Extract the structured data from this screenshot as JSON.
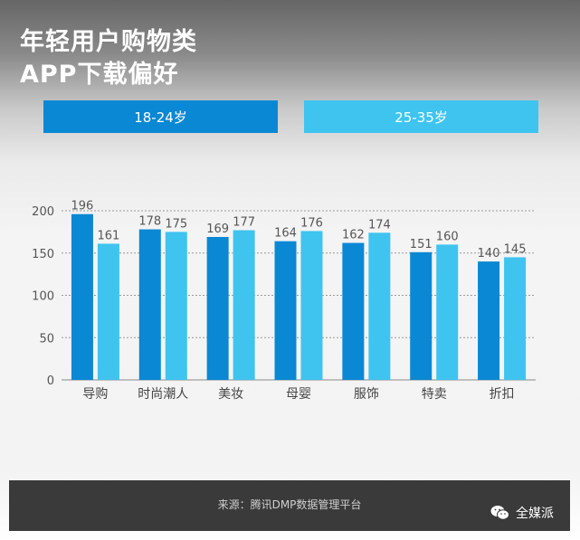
{
  "title": {
    "line1": "年轻用户购物类",
    "line2": "APP下载偏好"
  },
  "colors": {
    "series_a": "#0a88d4",
    "series_b": "#3fc4ef"
  },
  "chart_data": {
    "type": "bar",
    "categories": [
      "导购",
      "时尚潮人",
      "美妆",
      "母婴",
      "服饰",
      "特卖",
      "折扣"
    ],
    "series": [
      {
        "name": "18-24岁",
        "values": [
          196,
          178,
          169,
          164,
          162,
          151,
          140
        ]
      },
      {
        "name": "25-35岁",
        "values": [
          161,
          175,
          177,
          176,
          174,
          160,
          145
        ]
      }
    ],
    "y_ticks": [
      0,
      50,
      100,
      150,
      200
    ],
    "ylim": [
      0,
      200
    ],
    "grid": "dashed horizontal",
    "legend_position": "top",
    "xlabel": "",
    "ylabel": ""
  },
  "footer": {
    "source": "来源：腾讯DMP数据管理平台",
    "brand": "全媒派"
  },
  "brand_icon": "wechat-icon"
}
